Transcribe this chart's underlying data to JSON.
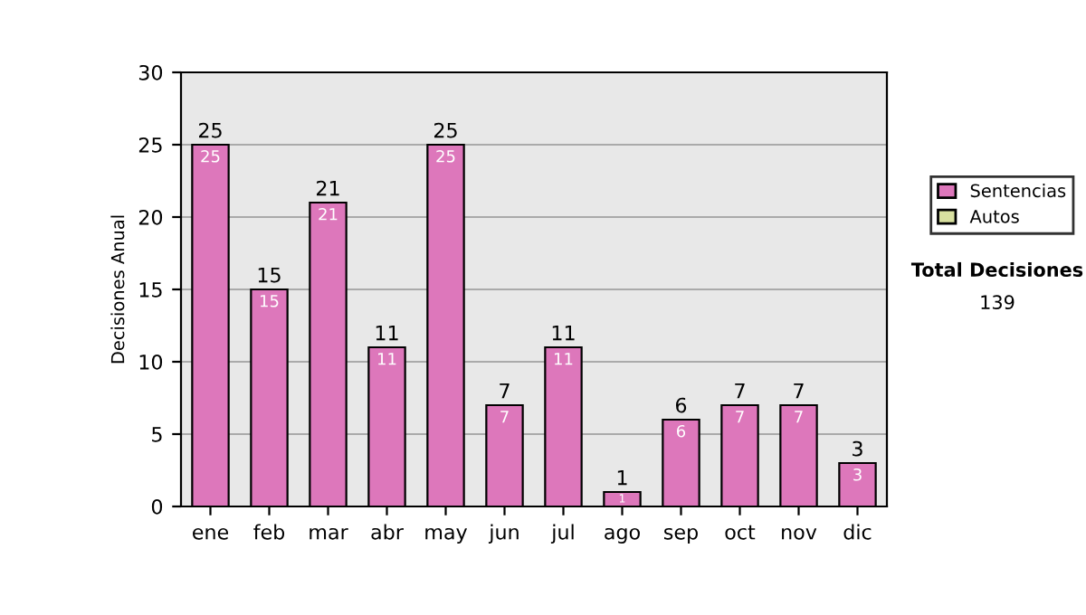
{
  "chart_data": {
    "type": "bar",
    "ylabel": "Decisiones Anual",
    "stacked": true,
    "categories": [
      "ene",
      "feb",
      "mar",
      "abr",
      "may",
      "jun",
      "jul",
      "ago",
      "sep",
      "oct",
      "nov",
      "dic"
    ],
    "series": [
      {
        "name": "Sentencias",
        "color": "#dd77bb",
        "values": [
          25,
          15,
          21,
          11,
          25,
          7,
          11,
          1,
          6,
          7,
          7,
          3
        ],
        "value_labels": [
          "25",
          "15",
          "21",
          "11",
          "25",
          "7",
          "11",
          "1",
          "6",
          "7",
          "7",
          "3"
        ]
      },
      {
        "name": "Autos",
        "color": "#d8e0a0",
        "values": [
          0,
          0,
          0,
          0,
          0,
          0,
          0,
          0,
          0,
          0,
          0,
          0
        ]
      }
    ],
    "totals": [
      "25",
      "15",
      "21",
      "11",
      "25",
      "7",
      "11",
      "1",
      "6",
      "7",
      "7",
      "3"
    ],
    "ylim": [
      0,
      30
    ],
    "yticks": [
      0,
      5,
      10,
      15,
      20,
      25,
      30
    ],
    "grid": "y",
    "legend": "right",
    "annotations": [
      "Total Decisiones",
      "139"
    ]
  }
}
